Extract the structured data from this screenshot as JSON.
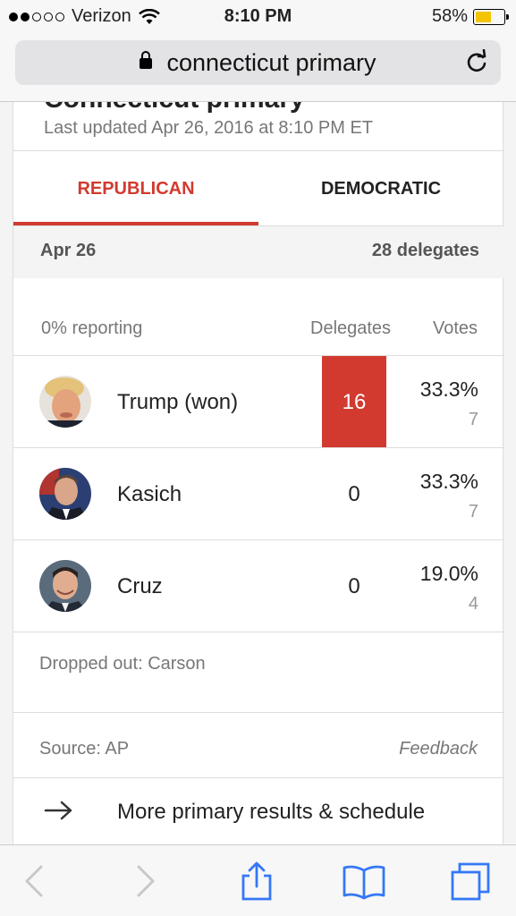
{
  "status_bar": {
    "carrier": "Verizon",
    "time": "8:10 PM",
    "battery_percent": "58%",
    "battery_level": 0.58,
    "signal_bars_filled": 2,
    "signal_bars_total": 5
  },
  "url_bar": {
    "text": "connecticut primary"
  },
  "header": {
    "title": "Connecticut primary",
    "updated": "Last updated Apr 26, 2016 at 8:10 PM ET"
  },
  "tabs": [
    {
      "label": "REPUBLICAN",
      "active": true
    },
    {
      "label": "DEMOCRATIC",
      "active": false
    }
  ],
  "date_row": {
    "date": "Apr 26",
    "delegates": "28 delegates"
  },
  "results_header": {
    "reporting": "0% reporting",
    "delegates": "Delegates",
    "votes": "Votes"
  },
  "candidates": [
    {
      "name": "Trump (won)",
      "delegates": "16",
      "percent": "33.3%",
      "votes": "7",
      "won": true
    },
    {
      "name": "Kasich",
      "delegates": "0",
      "percent": "33.3%",
      "votes": "7",
      "won": false
    },
    {
      "name": "Cruz",
      "delegates": "0",
      "percent": "19.0%",
      "votes": "4",
      "won": false
    }
  ],
  "dropped_out": "Dropped out: Carson",
  "footer": {
    "source": "Source: AP",
    "feedback": "Feedback",
    "more_link": "More primary results & schedule"
  },
  "colors": {
    "accent": "#d23a2f",
    "ios_blue": "#3478f6",
    "battery_yellow": "#f5c400"
  },
  "toolbar_icons": [
    "back-arrow-icon",
    "forward-arrow-icon",
    "share-icon",
    "bookmarks-icon",
    "tabs-icon"
  ]
}
